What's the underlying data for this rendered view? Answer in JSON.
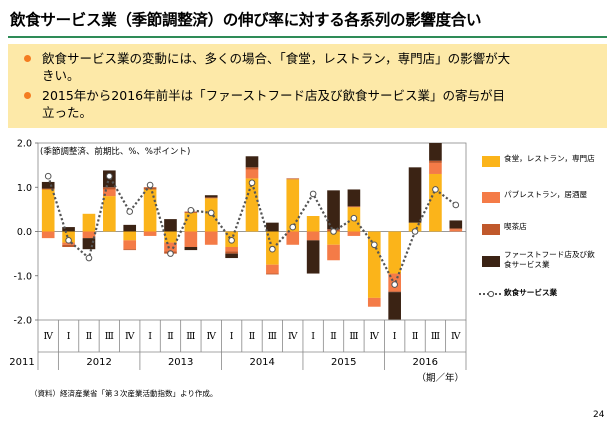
{
  "title": "飲食サービス業（季節調整済）の伸び率に対する各系列の影響度合い",
  "bullets": [
    {
      "line1": "飲食サービス業の変動には、多くの場合、「食堂，レストラン，専門店」の影響が大",
      "line2": "きい。"
    },
    {
      "line1": "2015年から2016年前半は「ファーストフード店及び飲食サービス業」の寄与が目",
      "line2": "立った。"
    }
  ],
  "colors": {
    "accent": "#2e8b57",
    "bullet_bg": "#fde9a8",
    "bullet_dot": "#f47c20",
    "restaurant": "#fbb41a",
    "pub": "#f47b47",
    "cafe": "#c0582b",
    "fastfood": "#3b2314",
    "total": "#555555"
  },
  "source": "（資料）経済産業省「第３次産業活動指数」より作成。",
  "page_number": "24",
  "chart_data": {
    "type": "bar",
    "stacked": true,
    "unit_label": "(季節調整済、前期比、%、%ポイント)",
    "ylim": [
      -2.0,
      2.0
    ],
    "yticks": [
      "2.0",
      "1.0",
      "0.0",
      "-1.0",
      "-2.0"
    ],
    "grid": false,
    "legend_position": "right",
    "quarters": [
      "Ⅳ",
      "Ⅰ",
      "Ⅱ",
      "Ⅲ",
      "Ⅳ",
      "Ⅰ",
      "Ⅱ",
      "Ⅲ",
      "Ⅳ",
      "Ⅰ",
      "Ⅱ",
      "Ⅲ",
      "Ⅳ",
      "Ⅰ",
      "Ⅱ",
      "Ⅲ",
      "Ⅳ",
      "Ⅰ",
      "Ⅱ",
      "Ⅲ",
      "Ⅳ"
    ],
    "years": [
      {
        "label": "2011",
        "start": 0,
        "end": 0
      },
      {
        "label": "2012",
        "start": 1,
        "end": 4
      },
      {
        "label": "2013",
        "start": 5,
        "end": 8
      },
      {
        "label": "2014",
        "start": 9,
        "end": 12
      },
      {
        "label": "2015",
        "start": 13,
        "end": 16
      },
      {
        "label": "2016",
        "start": 17,
        "end": 20
      }
    ],
    "axis_suffix": "（期／年）",
    "series": [
      {
        "name": "食堂，レストラン，専門店",
        "kind": "bar",
        "color": "#fbb41a",
        "values": [
          0.95,
          -0.25,
          0.4,
          0.8,
          -0.2,
          0.95,
          -0.25,
          0.42,
          0.75,
          -0.35,
          1.2,
          -0.75,
          1.18,
          0.35,
          -0.3,
          0.55,
          -1.5,
          -0.95,
          0.2,
          1.3,
          0.0
        ]
      },
      {
        "name": "パブレストラン，居酒屋",
        "kind": "bar",
        "color": "#f47b47",
        "values": [
          -0.15,
          -0.05,
          -0.15,
          0.15,
          -0.2,
          -0.1,
          -0.2,
          -0.35,
          -0.3,
          -0.1,
          0.2,
          -0.2,
          -0.3,
          -0.2,
          -0.35,
          -0.1,
          -0.2,
          -0.4,
          0.0,
          0.25,
          0.05
        ]
      },
      {
        "name": "喫茶店",
        "kind": "bar",
        "color": "#c0582b",
        "values": [
          0.02,
          -0.05,
          0.0,
          0.05,
          -0.02,
          0.05,
          -0.05,
          0.03,
          0.02,
          -0.05,
          0.05,
          -0.02,
          0.02,
          0.0,
          0.05,
          0.02,
          0.0,
          -0.02,
          0.0,
          0.05,
          0.02
        ]
      },
      {
        "name": "ファーストフード店及び飲食サービス業",
        "kind": "bar",
        "color": "#3b2314",
        "values": [
          0.15,
          0.1,
          -0.25,
          0.38,
          0.15,
          0.0,
          0.28,
          -0.07,
          0.05,
          -0.1,
          0.25,
          0.2,
          0.0,
          -0.75,
          0.88,
          0.38,
          0.0,
          -0.62,
          1.25,
          0.4,
          0.18
        ]
      },
      {
        "name": "飲食サービス業",
        "kind": "line",
        "color": "#555555",
        "values": [
          1.25,
          -0.2,
          -0.6,
          1.25,
          0.45,
          1.05,
          -0.5,
          0.48,
          0.42,
          -0.2,
          1.1,
          -0.4,
          0.1,
          0.85,
          0.0,
          0.3,
          -0.3,
          -1.2,
          0.0,
          0.95,
          0.6
        ]
      }
    ]
  }
}
